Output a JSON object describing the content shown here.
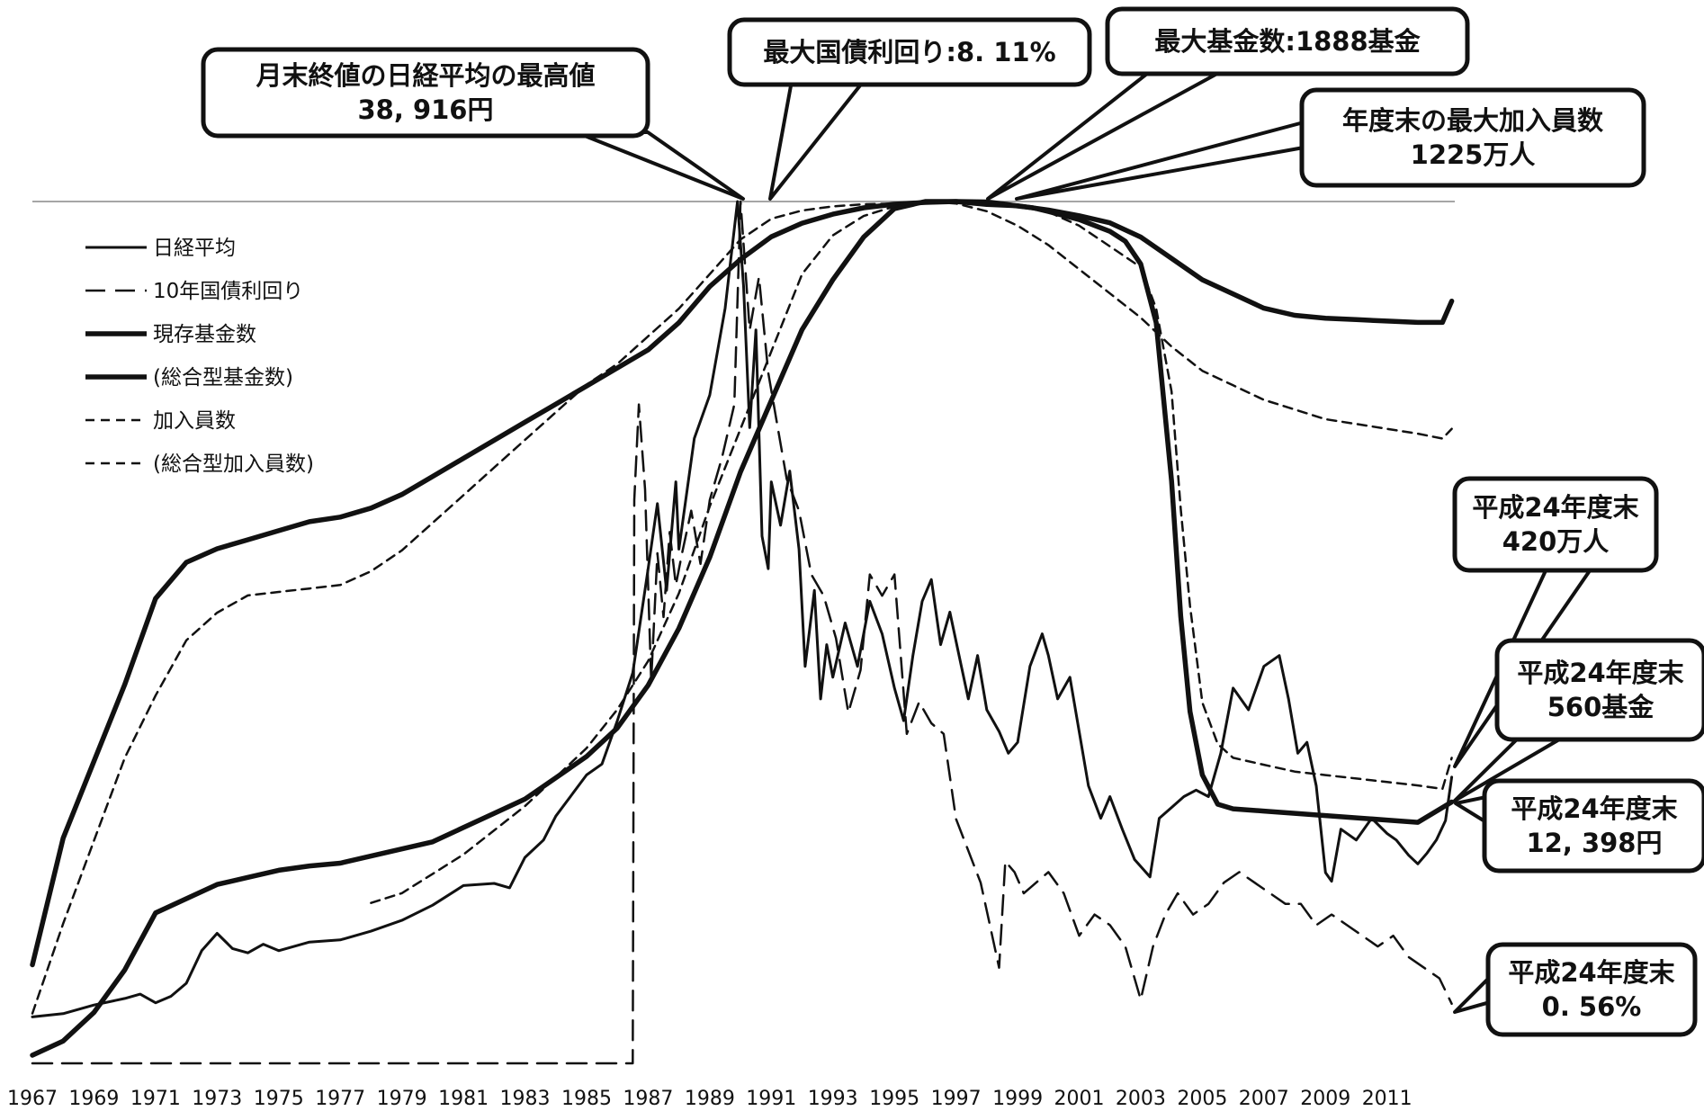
{
  "chart_data": {
    "type": "line",
    "title": "",
    "xlabel": "",
    "ylabel": "",
    "x_range": [
      1967,
      2013.2
    ],
    "x_ticks": [
      "1967",
      "1969",
      "1971",
      "1973",
      "1975",
      "1977",
      "1979",
      "1981",
      "1983",
      "1985",
      "1987",
      "1989",
      "1991",
      "1993",
      "1995",
      "1997",
      "1999",
      "2001",
      "2003",
      "2005",
      "2007",
      "2009",
      "2011"
    ],
    "grid": false,
    "legend_position": "top-left",
    "normalization": "each series scaled so its maximum value reaches the top reference line",
    "legend": [
      {
        "label": "日経平均",
        "style": "solid-thin"
      },
      {
        "label": "10年国債利回り",
        "style": "long-dash"
      },
      {
        "label": "現存基金数",
        "style": "solid-thick"
      },
      {
        "label": "(総合型基金数)",
        "style": "solid-thick"
      },
      {
        "label": "加入員数",
        "style": "short-dash"
      },
      {
        "label": "(総合型加入員数)",
        "style": "short-dash"
      }
    ],
    "series": [
      {
        "name": "日経平均",
        "style": "solid-thin",
        "unit": "円",
        "x": [
          1967.0,
          1968.0,
          1969.0,
          1970.0,
          1970.5,
          1971.0,
          1971.5,
          1972.0,
          1972.5,
          1973.0,
          1973.5,
          1974.0,
          1974.5,
          1975.0,
          1976.0,
          1977.0,
          1978.0,
          1979.0,
          1980.0,
          1981.0,
          1982.0,
          1982.5,
          1983.0,
          1983.6,
          1984.0,
          1985.0,
          1985.5,
          1986.0,
          1986.5,
          1987.0,
          1987.3,
          1987.6,
          1987.9,
          1988.0,
          1988.5,
          1989.0,
          1989.5,
          1989.9,
          1990.1,
          1990.3,
          1990.5,
          1990.7,
          1990.9,
          1991.0,
          1991.3,
          1991.6,
          1991.9,
          1992.1,
          1992.4,
          1992.6,
          1992.8,
          1993.0,
          1993.4,
          1993.8,
          1994.2,
          1994.6,
          1995.0,
          1995.3,
          1995.6,
          1995.9,
          1996.2,
          1996.5,
          1996.8,
          1997.1,
          1997.4,
          1997.7,
          1998.0,
          1998.4,
          1998.7,
          1999.0,
          1999.4,
          1999.8,
          2000.0,
          2000.3,
          2000.7,
          2001.0,
          2001.3,
          2001.7,
          2002.0,
          2002.4,
          2002.8,
          2003.3,
          2003.6,
          2004.0,
          2004.4,
          2004.8,
          2005.2,
          2005.6,
          2006.0,
          2006.5,
          2007.0,
          2007.5,
          2007.8,
          2008.1,
          2008.4,
          2008.7,
          2009.0,
          2009.2,
          2009.5,
          2010.0,
          2010.5,
          2011.0,
          2011.3,
          2011.7,
          2012.0,
          2012.3,
          2012.6,
          2012.9,
          2013.1
        ],
        "values": [
          1350,
          1500,
          1900,
          2200,
          2400,
          2000,
          2300,
          2900,
          4400,
          5200,
          4500,
          4300,
          4700,
          4400,
          4800,
          4900,
          5300,
          5800,
          6500,
          7400,
          7500,
          7300,
          8700,
          9500,
          10600,
          12500,
          13000,
          15000,
          17200,
          22000,
          25000,
          21000,
          26000,
          22900,
          28000,
          30000,
          34000,
          38916,
          35000,
          28500,
          33000,
          23500,
          22000,
          26000,
          24000,
          26500,
          22900,
          17500,
          21000,
          16000,
          18500,
          17000,
          19500,
          17500,
          20500,
          19000,
          16500,
          15000,
          18000,
          20500,
          21500,
          18500,
          20000,
          18000,
          16000,
          18000,
          15500,
          14500,
          13500,
          14000,
          17500,
          19000,
          18000,
          16000,
          17000,
          14500,
          12000,
          10500,
          11500,
          10000,
          8600,
          7800,
          10500,
          11000,
          11500,
          11800,
          11500,
          13500,
          16500,
          15500,
          17500,
          18000,
          16000,
          13500,
          14000,
          12000,
          8000,
          7600,
          10000,
          9500,
          10500,
          9800,
          9500,
          8800,
          8400,
          8900,
          9500,
          10400,
          12398
        ]
      },
      {
        "name": "10年国債利回り",
        "style": "long-dash",
        "unit": "%",
        "x": [
          1967.0,
          1986.5,
          1986.55,
          1986.7,
          1986.9,
          1987.1,
          1987.3,
          1987.5,
          1987.7,
          1987.9,
          1988.1,
          1988.4,
          1988.7,
          1989.0,
          1989.4,
          1989.8,
          1990.0,
          1990.3,
          1990.6,
          1990.9,
          1991.2,
          1991.5,
          1991.9,
          1992.3,
          1992.7,
          1993.1,
          1993.5,
          1993.9,
          1994.2,
          1994.6,
          1995.0,
          1995.4,
          1995.8,
          1996.2,
          1996.6,
          1997.0,
          1997.4,
          1997.8,
          1998.1,
          1998.4,
          1998.6,
          1998.9,
          1999.2,
          1999.6,
          2000.0,
          2000.5,
          2001.0,
          2001.5,
          2002.0,
          2002.5,
          2003.0,
          2003.4,
          2003.8,
          2004.2,
          2004.7,
          2005.2,
          2005.7,
          2006.2,
          2006.7,
          2007.2,
          2007.7,
          2008.2,
          2008.7,
          2009.2,
          2009.7,
          2010.2,
          2010.7,
          2011.2,
          2011.7,
          2012.2,
          2012.7,
          2013.1
        ],
        "values": [
          0.0,
          0.0,
          5.3,
          6.2,
          5.4,
          3.6,
          4.8,
          4.2,
          5.0,
          4.5,
          4.8,
          5.2,
          4.7,
          5.3,
          5.7,
          6.2,
          8.11,
          6.9,
          7.4,
          6.5,
          6.0,
          5.5,
          5.2,
          4.6,
          4.4,
          4.0,
          3.3,
          3.7,
          4.6,
          4.4,
          4.6,
          3.1,
          3.4,
          3.2,
          3.1,
          2.3,
          2.0,
          1.7,
          1.3,
          0.9,
          1.9,
          1.8,
          1.6,
          1.7,
          1.8,
          1.6,
          1.2,
          1.4,
          1.3,
          1.1,
          0.6,
          1.1,
          1.4,
          1.6,
          1.4,
          1.5,
          1.7,
          1.8,
          1.7,
          1.6,
          1.5,
          1.5,
          1.3,
          1.4,
          1.3,
          1.2,
          1.1,
          1.2,
          1.0,
          0.9,
          0.8,
          0.56
        ]
      },
      {
        "name": "現存基金数",
        "style": "solid-thick",
        "unit": "基金",
        "x": [
          1967.0,
          1968.0,
          1969.0,
          1970.0,
          1971.0,
          1972.0,
          1973.0,
          1974.0,
          1975.0,
          1976.0,
          1977.0,
          1978.0,
          1979.0,
          1980.0,
          1981.0,
          1982.0,
          1983.0,
          1984.0,
          1985.0,
          1986.0,
          1987.0,
          1988.0,
          1989.0,
          1990.0,
          1991.0,
          1992.0,
          1993.0,
          1994.0,
          1995.0,
          1996.0,
          1997.0,
          1998.0,
          1998.5,
          1999.0,
          1999.5,
          2000.0,
          2001.0,
          2002.0,
          2002.5,
          2003.0,
          2003.5,
          2004.0,
          2004.3,
          2004.6,
          2005.0,
          2005.5,
          2006.0,
          2007.0,
          2008.0,
          2009.0,
          2010.0,
          2011.0,
          2012.0,
          2013.1
        ],
        "values": [
          200,
          480,
          650,
          820,
          1010,
          1090,
          1120,
          1140,
          1160,
          1180,
          1190,
          1210,
          1240,
          1280,
          1320,
          1360,
          1400,
          1440,
          1480,
          1520,
          1560,
          1620,
          1700,
          1760,
          1810,
          1840,
          1860,
          1874,
          1882,
          1886,
          1888,
          1887,
          1883,
          1878,
          1874,
          1866,
          1848,
          1822,
          1800,
          1750,
          1620,
          1270,
          970,
          760,
          620,
          555,
          545,
          540,
          535,
          530,
          525,
          520,
          515,
          560
        ]
      },
      {
        "name": "(総合型基金数)",
        "style": "solid-thick",
        "unit": "基金",
        "x": [
          1967.0,
          1968.0,
          1969.0,
          1970.0,
          1971.0,
          1972.0,
          1973.0,
          1974.0,
          1975.0,
          1976.0,
          1977.0,
          1978.0,
          1979.0,
          1980.0,
          1981.0,
          1982.0,
          1983.0,
          1984.0,
          1985.0,
          1986.0,
          1987.0,
          1988.0,
          1989.0,
          1990.0,
          1991.0,
          1992.0,
          1993.0,
          1994.0,
          1995.0,
          1996.0,
          1997.0,
          1998.0,
          1999.0,
          2000.0,
          2001.0,
          2002.0,
          2003.0,
          2004.0,
          2005.0,
          2006.0,
          2007.0,
          2008.0,
          2009.0,
          2010.0,
          2011.0,
          2012.0,
          2012.8,
          2013.1
        ],
        "values": [
          0,
          10,
          30,
          60,
          100,
          110,
          120,
          125,
          130,
          133,
          135,
          140,
          145,
          150,
          160,
          170,
          180,
          195,
          210,
          230,
          260,
          300,
          350,
          410,
          460,
          510,
          545,
          575,
          595,
          600,
          600,
          598,
          597,
          594,
          590,
          585,
          575,
          560,
          545,
          535,
          525,
          520,
          518,
          517,
          516,
          515,
          515,
          530
        ]
      },
      {
        "name": "加入員数",
        "style": "short-dash",
        "unit": "万人",
        "x": [
          1967.0,
          1968.0,
          1969.0,
          1970.0,
          1971.0,
          1972.0,
          1973.0,
          1974.0,
          1975.0,
          1976.0,
          1977.0,
          1978.0,
          1979.0,
          1980.0,
          1981.0,
          1982.0,
          1983.0,
          1984.0,
          1985.0,
          1986.0,
          1987.0,
          1988.0,
          1989.0,
          1990.0,
          1991.0,
          1992.0,
          1993.0,
          1994.0,
          1995.0,
          1996.0,
          1997.0,
          1998.0,
          1999.0,
          2000.0,
          2001.0,
          2002.0,
          2003.0,
          2003.5,
          2004.0,
          2004.3,
          2004.6,
          2005.0,
          2005.5,
          2006.0,
          2007.0,
          2008.0,
          2009.0,
          2010.0,
          2011.0,
          2012.0,
          2012.8,
          2013.1
        ],
        "values": [
          50,
          180,
          300,
          420,
          510,
          590,
          630,
          655,
          660,
          665,
          670,
          690,
          720,
          760,
          800,
          840,
          880,
          920,
          960,
          990,
          1030,
          1070,
          1120,
          1170,
          1200,
          1212,
          1218,
          1221,
          1222,
          1223,
          1225,
          1224,
          1218,
          1210,
          1190,
          1160,
          1130,
          1070,
          950,
          780,
          640,
          500,
          440,
          420,
          410,
          400,
          395,
          390,
          385,
          380,
          375,
          420
        ]
      },
      {
        "name": "(総合型加入員数)",
        "style": "short-dash",
        "unit": "万人",
        "x": [
          1978.0,
          1979.0,
          1980.0,
          1981.0,
          1982.0,
          1983.0,
          1984.0,
          1985.0,
          1986.0,
          1987.0,
          1988.0,
          1989.0,
          1990.0,
          1991.0,
          1992.0,
          1993.0,
          1994.0,
          1995.0,
          1996.0,
          1997.0,
          1998.0,
          1999.0,
          2000.0,
          2001.0,
          2002.0,
          2003.0,
          2004.0,
          2005.0,
          2006.0,
          2007.0,
          2008.0,
          2009.0,
          2010.0,
          2011.0,
          2012.0,
          2012.8,
          2013.1
        ],
        "values": [
          150,
          160,
          180,
          200,
          225,
          250,
          280,
          310,
          350,
          400,
          470,
          560,
          640,
          720,
          800,
          840,
          860,
          870,
          875,
          873,
          865,
          850,
          830,
          805,
          780,
          755,
          725,
          700,
          685,
          670,
          660,
          650,
          645,
          640,
          635,
          630,
          640
        ]
      }
    ],
    "annotations": [
      {
        "id": "nikkei-peak",
        "lines": [
          "月末終値の日経平均の最高値",
          "38, 916円"
        ]
      },
      {
        "id": "jgb-peak",
        "lines": [
          "最大国債利回り:8. 11%"
        ]
      },
      {
        "id": "funds-peak",
        "lines": [
          "最大基金数:1888基金"
        ]
      },
      {
        "id": "members-peak",
        "lines": [
          "年度末の最大加入員数",
          "1225万人"
        ]
      },
      {
        "id": "members-2012",
        "lines": [
          "平成24年度末",
          "420万人"
        ]
      },
      {
        "id": "funds-2012",
        "lines": [
          "平成24年度末",
          "560基金"
        ]
      },
      {
        "id": "nikkei-2012",
        "lines": [
          "平成24年度末",
          "12, 398円"
        ]
      },
      {
        "id": "jgb-2012",
        "lines": [
          "平成24年度末",
          "0. 56%"
        ]
      }
    ]
  }
}
